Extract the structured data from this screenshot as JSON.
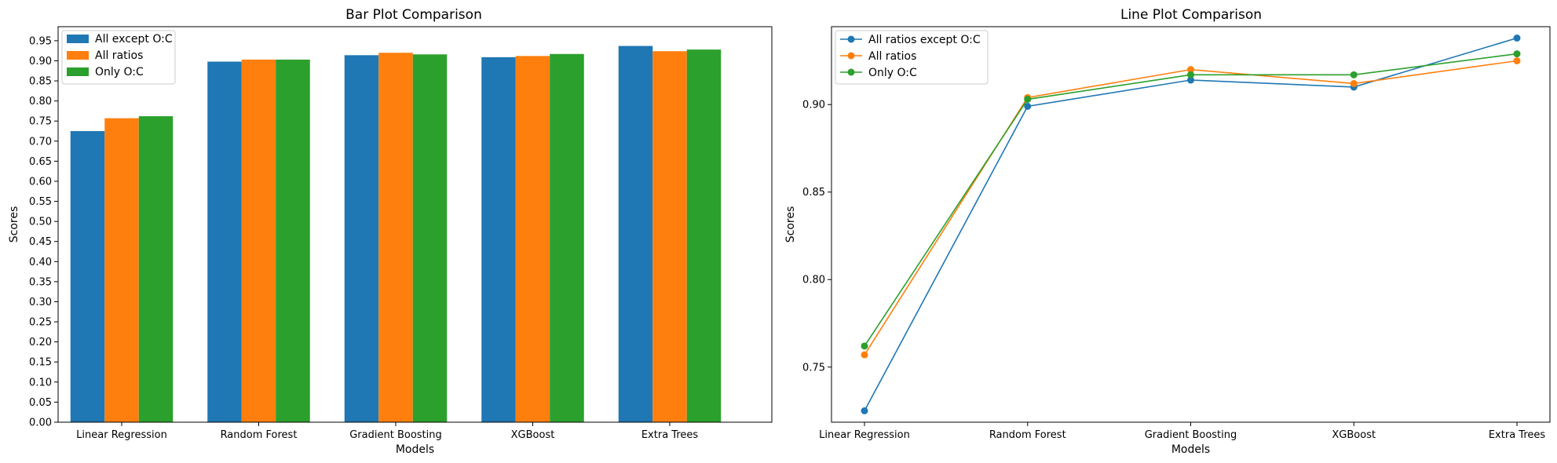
{
  "chart_data": [
    {
      "type": "bar",
      "title": "Bar Plot Comparison",
      "xlabel": "Models",
      "ylabel": "Scores",
      "categories": [
        "Linear Regression",
        "Random Forest",
        "Gradient Boosting",
        "XGBoost",
        "Extra Trees"
      ],
      "series": [
        {
          "name": "All except O:C",
          "color": "#1f77b4",
          "values": [
            0.725,
            0.898,
            0.914,
            0.909,
            0.937
          ]
        },
        {
          "name": "All ratios",
          "color": "#ff7f0e",
          "values": [
            0.757,
            0.903,
            0.92,
            0.912,
            0.924
          ]
        },
        {
          "name": "Only O:C",
          "color": "#2ca02c",
          "values": [
            0.762,
            0.903,
            0.916,
            0.917,
            0.928
          ]
        }
      ],
      "ylim": [
        0,
        0.985
      ],
      "yticks": [
        "0.00",
        "0.05",
        "0.10",
        "0.15",
        "0.20",
        "0.25",
        "0.30",
        "0.35",
        "0.40",
        "0.45",
        "0.50",
        "0.55",
        "0.60",
        "0.65",
        "0.70",
        "0.75",
        "0.80",
        "0.85",
        "0.90",
        "0.95"
      ],
      "legend": "upper-left",
      "grid": false
    },
    {
      "type": "line",
      "title": "Line Plot Comparison",
      "xlabel": "Models",
      "ylabel": "Scores",
      "categories": [
        "Linear Regression",
        "Random Forest",
        "Gradient Boosting",
        "XGBoost",
        "Extra Trees"
      ],
      "series": [
        {
          "name": "All ratios except O:C",
          "color": "#1f77b4",
          "values": [
            0.725,
            0.899,
            0.914,
            0.91,
            0.938
          ]
        },
        {
          "name": "All ratios",
          "color": "#ff7f0e",
          "values": [
            0.757,
            0.904,
            0.92,
            0.912,
            0.925
          ]
        },
        {
          "name": "Only O:C",
          "color": "#2ca02c",
          "values": [
            0.762,
            0.903,
            0.917,
            0.917,
            0.929
          ]
        }
      ],
      "ylim": [
        0.7185,
        0.9445
      ],
      "yticks": [
        "0.75",
        "0.80",
        "0.85",
        "0.90"
      ],
      "legend": "upper-left",
      "grid": false
    }
  ]
}
